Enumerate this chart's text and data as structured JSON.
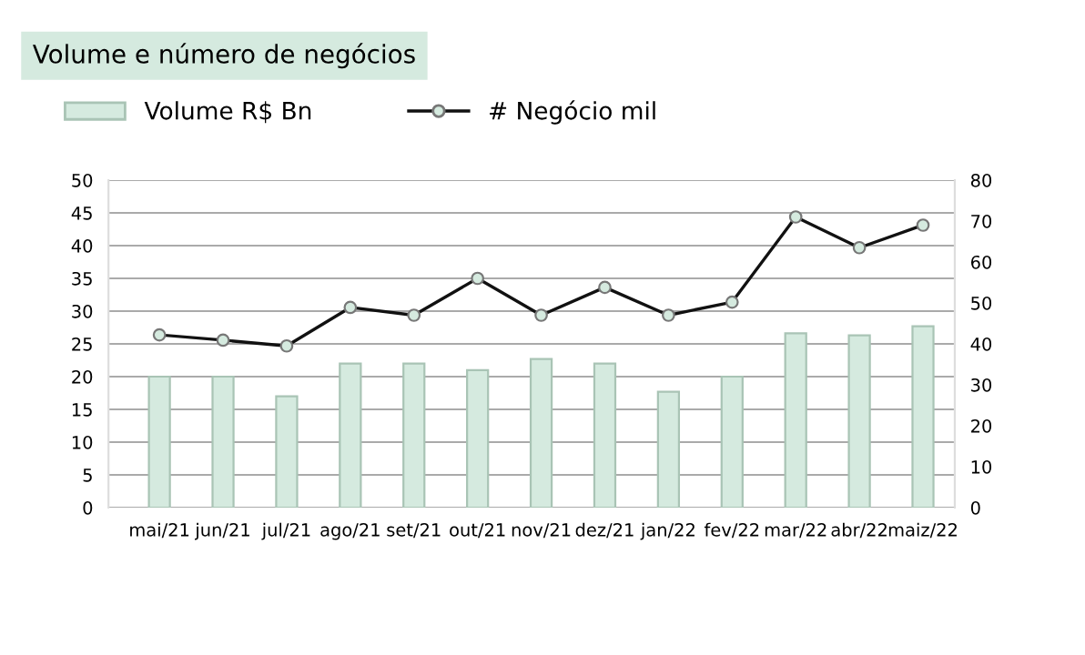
{
  "chart_data": {
    "type": "bar",
    "title": "Volume e número de negócios",
    "categories": [
      "mai/21",
      "jun/21",
      "jul/21",
      "ago/21",
      "set/21",
      "out/21",
      "nov/21",
      "dez/21",
      "jan/22",
      "fev/22",
      "mar/22",
      "abr/22",
      "maiz/22"
    ],
    "series": [
      {
        "name": "Volume R$ Bn",
        "type": "bar",
        "color": "#d5eadf",
        "values": [
          20,
          20,
          17,
          22,
          22,
          21,
          22.7,
          22,
          17.7,
          20,
          26.6,
          26.3,
          27.7
        ]
      },
      {
        "name": "# Negócio mil",
        "type": "line",
        "axis": "y2",
        "color": "#111111",
        "marker": "circle",
        "values": [
          42.2,
          40.9,
          39.5,
          48.9,
          47,
          56,
          47,
          53.8,
          47,
          50.2,
          71,
          63.5,
          69
        ]
      }
    ],
    "ylim": [
      0,
      50
    ],
    "yticks": [
      0,
      5,
      10,
      15,
      20,
      25,
      30,
      35,
      40,
      45,
      50
    ],
    "y2lim": [
      0,
      80
    ],
    "y2ticks": [
      0,
      10,
      20,
      30,
      40,
      50,
      60,
      70,
      80
    ],
    "grid": "y",
    "legend": "top left"
  }
}
